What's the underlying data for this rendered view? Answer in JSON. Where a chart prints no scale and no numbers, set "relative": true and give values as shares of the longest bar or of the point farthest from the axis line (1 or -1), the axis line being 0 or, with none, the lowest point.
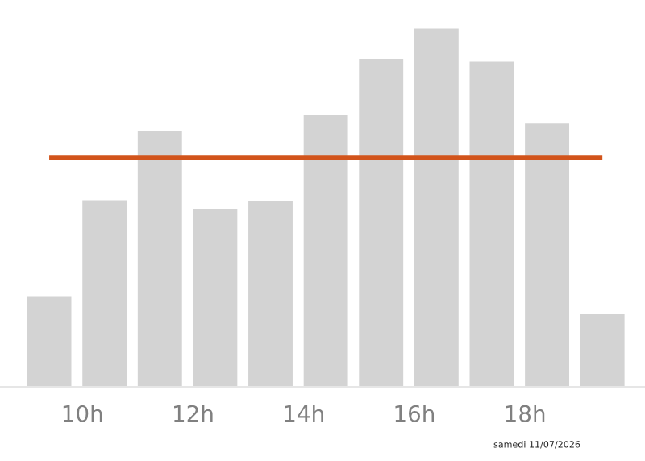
{
  "chart_data": {
    "type": "bar",
    "relative": true,
    "x": [
      9.4,
      10.4,
      11.4,
      12.4,
      13.4,
      14.4,
      15.4,
      16.4,
      17.4,
      18.4,
      19.4
    ],
    "series": [
      {
        "color": "#d3d3d3",
        "values": [
          0.253,
          0.521,
          0.713,
          0.497,
          0.519,
          0.758,
          0.916,
          1,
          0.908,
          0.735,
          0.204
        ]
      }
    ],
    "xlim": [
      8.51,
      20.17
    ],
    "xticks": [
      {
        "value": 10,
        "label": "10h"
      },
      {
        "value": 12,
        "label": "12h"
      },
      {
        "value": 14,
        "label": "14h"
      },
      {
        "value": 16,
        "label": "16h"
      },
      {
        "value": 18,
        "label": "18h"
      }
    ],
    "ref_lines": [
      {
        "axis": "y",
        "value": 0.641,
        "color": "#d2541b"
      }
    ],
    "annotations": [
      "samedi 11/07/2026"
    ],
    "grid": false,
    "legend": false,
    "tick_labels": "x"
  }
}
